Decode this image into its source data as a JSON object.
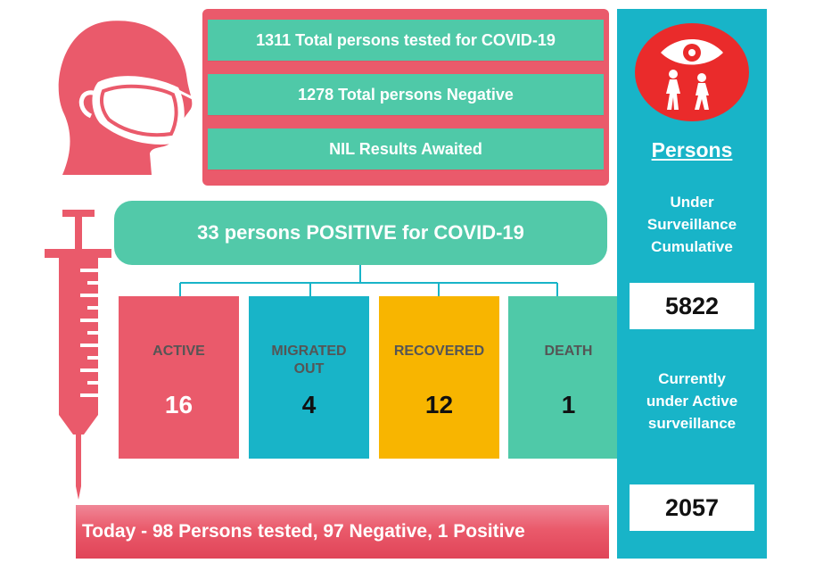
{
  "tests": {
    "total_tested": "1311 Total persons tested for COVID-19",
    "total_negative": "1278 Total persons Negative",
    "results_awaited": "NIL Results Awaited"
  },
  "positive": {
    "headline": "33 persons POSITIVE for COVID-19",
    "breakdown": [
      {
        "label": "ACTIVE",
        "value": "16",
        "color": "#ea5a6b",
        "value_color": "#ffffff"
      },
      {
        "label": "MIGRATED OUT",
        "value": "4",
        "color": "#18b4c8",
        "value_color": "#111111"
      },
      {
        "label": "RECOVERED",
        "value": "12",
        "color": "#f8b500",
        "value_color": "#111111"
      },
      {
        "label": "DEATH",
        "value": "1",
        "color": "#4fc9a8",
        "value_color": "#111111"
      }
    ]
  },
  "today": {
    "summary": "Today - 98 Persons tested,  97 Negative, 1 Positive"
  },
  "surveillance": {
    "title": "Persons",
    "cumulative_label": "Under Surveillance Cumulative",
    "cumulative_value": "5822",
    "active_label": "Currently under Active surveillance",
    "active_value": "2057"
  },
  "colors": {
    "coral": "#ea5a6b",
    "mint": "#4fc9a8",
    "cyan": "#18b4c8",
    "amber": "#f8b500",
    "badge_red": "#ea2b2b"
  },
  "icons": [
    "masked-head-icon",
    "syringe-icon",
    "surveillance-eye-icon"
  ]
}
